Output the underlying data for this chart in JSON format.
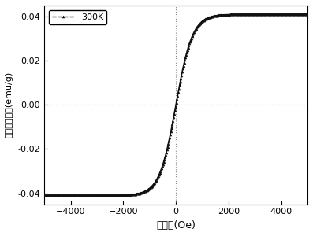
{
  "title": "",
  "xlabel": "矫顼力(Oe)",
  "ylabel": "饱和磁化强度(emu/g)",
  "xlim": [
    -5000,
    5000
  ],
  "ylim": [
    -0.045,
    0.045
  ],
  "xticks": [
    -4000,
    -2000,
    0,
    2000,
    4000
  ],
  "yticks": [
    -0.04,
    -0.02,
    0.0,
    0.02,
    0.04
  ],
  "legend_label": "300K",
  "line_color": "#111111",
  "marker": "^",
  "markersize": 2.2,
  "saturation": 0.041,
  "tanh_scale": 0.0016,
  "background_color": "#ffffff",
  "dotted_line_color": "#888888",
  "xlabel_fontsize": 9,
  "ylabel_fontsize": 8,
  "tick_fontsize": 8
}
